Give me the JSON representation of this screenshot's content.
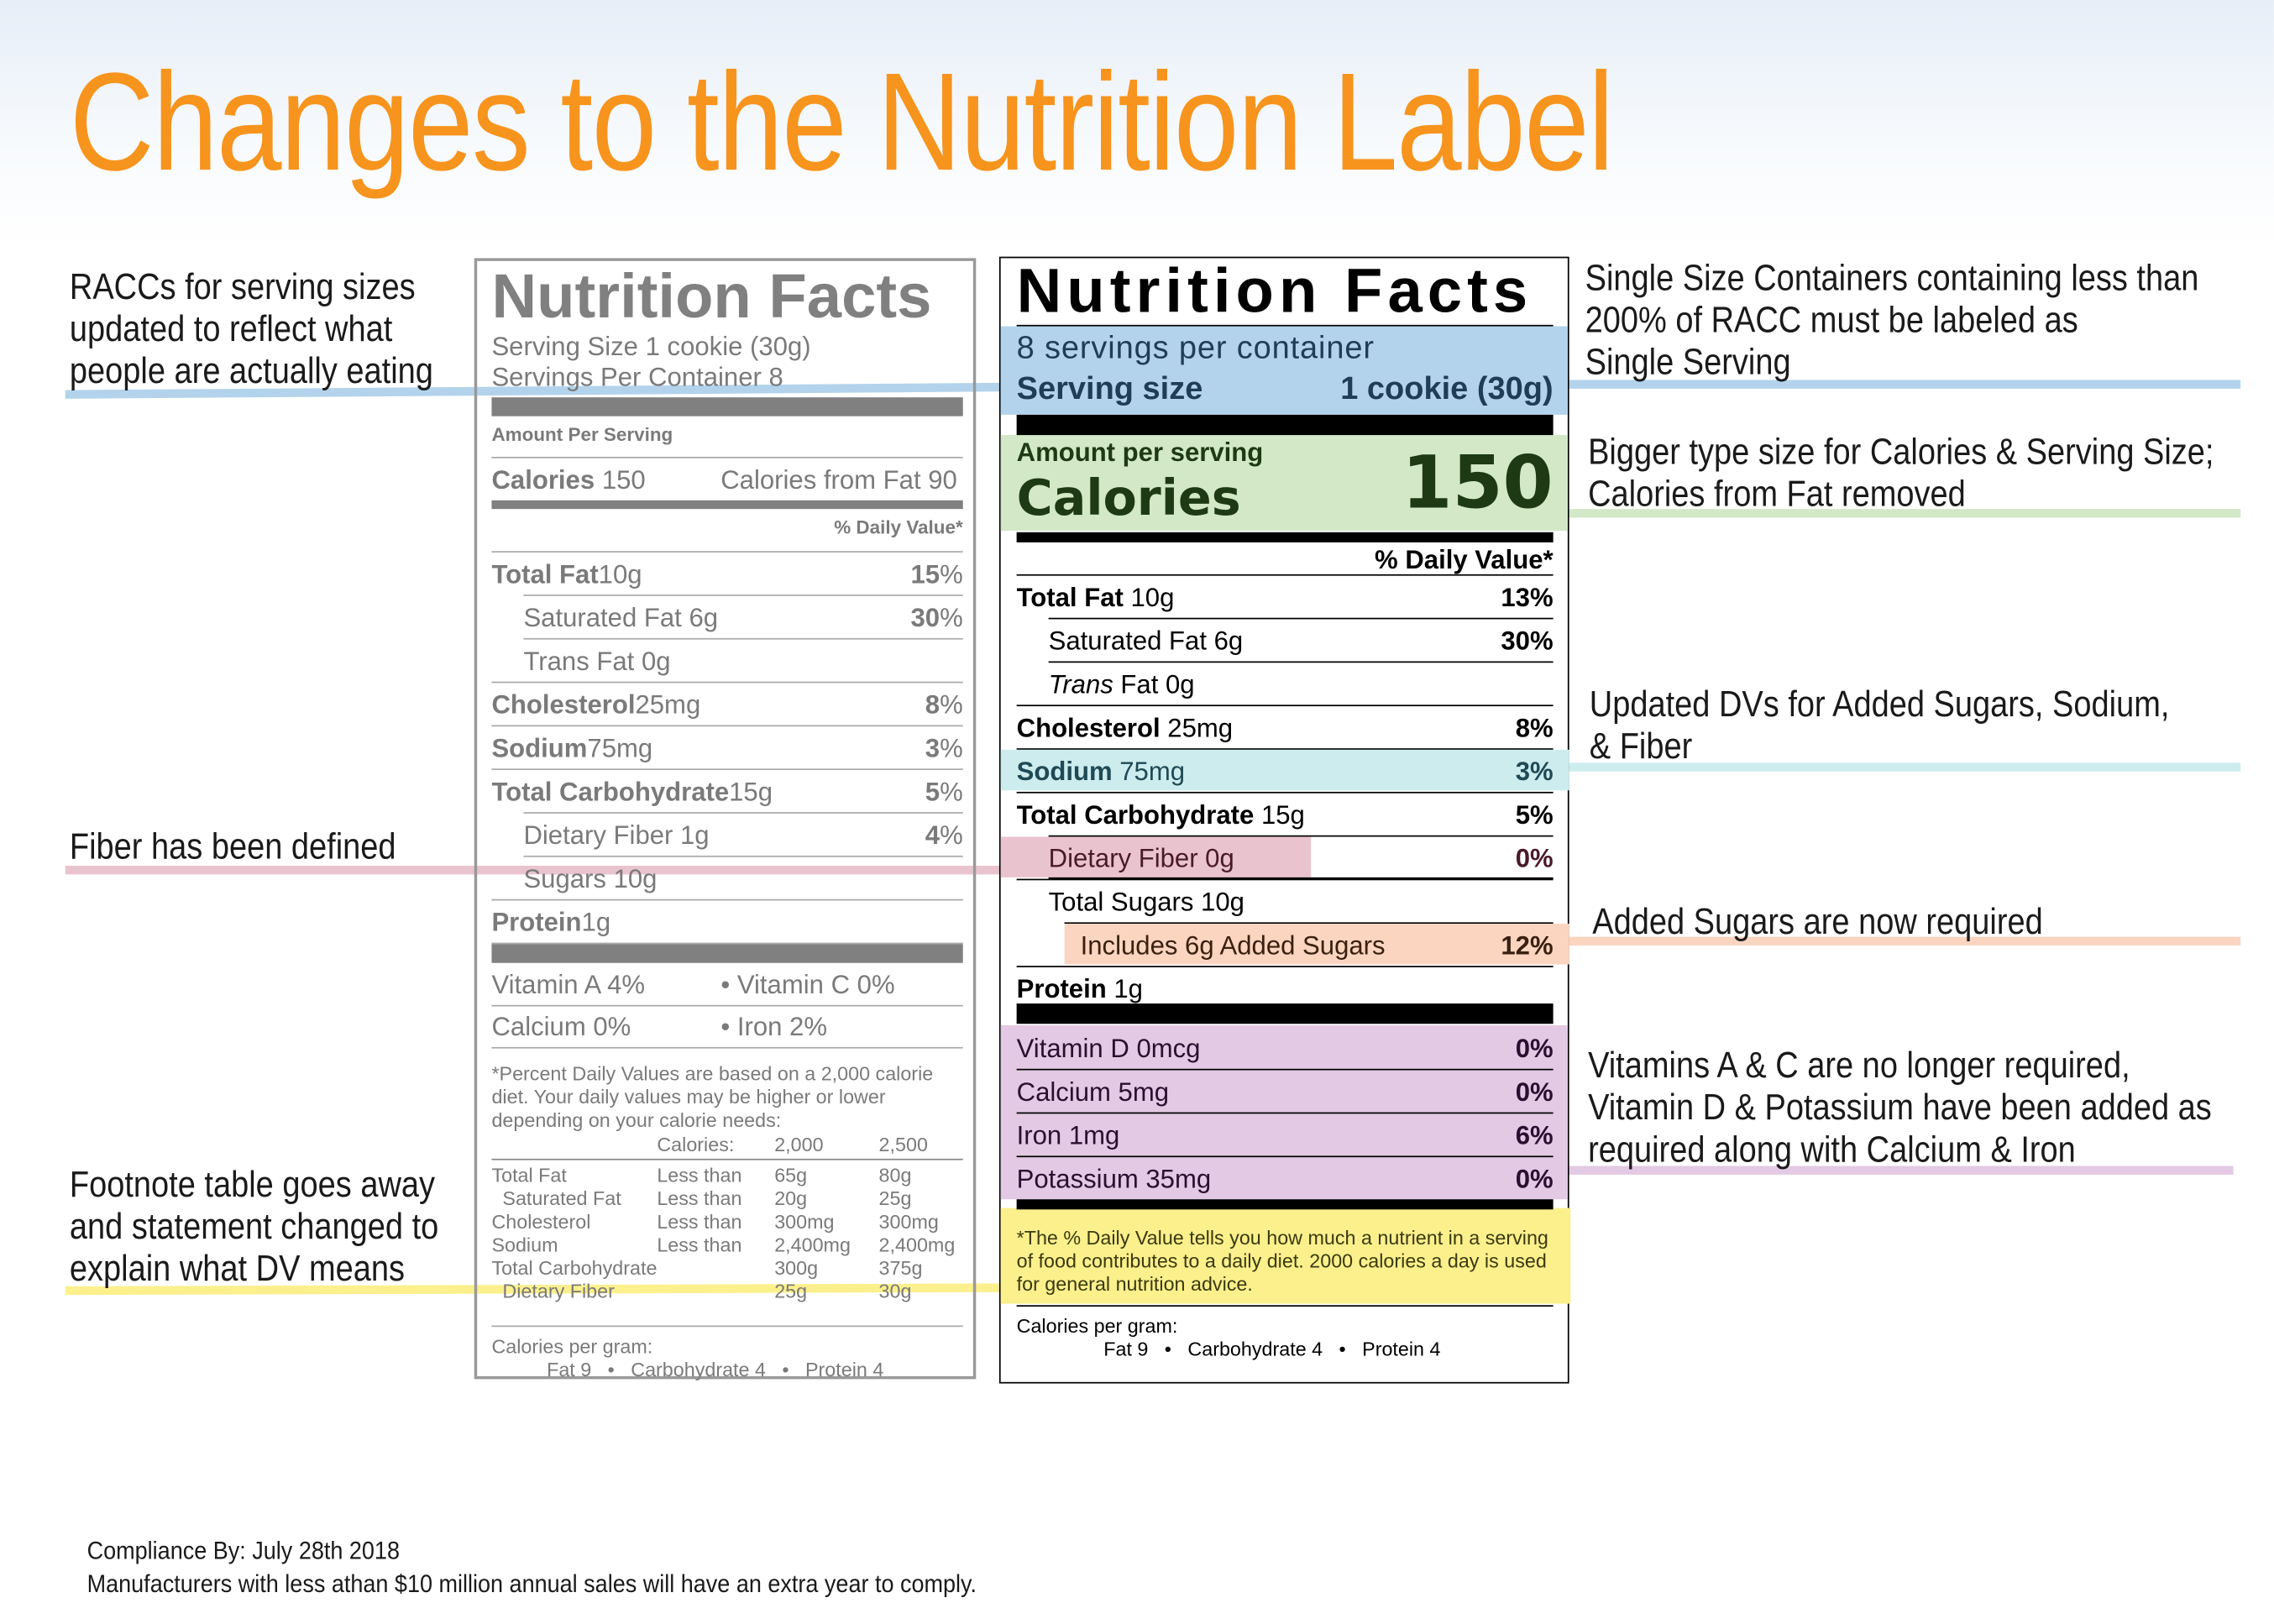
{
  "title": "Changes to the Nutrition Label",
  "colors": {
    "title": "#f7941d",
    "blue": "#b3d3ec",
    "green": "#d2e8c6",
    "teal": "#cdecee",
    "pink": "#e9c4cf",
    "orange": "#fbd5c0",
    "purple": "#e3c9e3",
    "yellow": "#fbf08c"
  },
  "annotations": {
    "left": [
      {
        "lines": [
          "RACCs for serving sizes",
          "updated to reflect what",
          "people are actually eating"
        ],
        "color": "blue"
      },
      {
        "lines": [
          "Fiber has been defined"
        ],
        "color": "pink"
      },
      {
        "lines": [
          "Footnote table goes away",
          "and statement changed to",
          "explain what DV means"
        ],
        "color": "yellow"
      }
    ],
    "right": [
      {
        "lines": [
          "Single Size Containers containing less than",
          "200% of RACC must be labeled as",
          "Single Serving"
        ],
        "color": "blue"
      },
      {
        "lines": [
          "Bigger type size for Calories & Serving Size;",
          "Calories from Fat removed"
        ],
        "color": "green"
      },
      {
        "lines": [
          "Updated DVs for Added Sugars, Sodium,",
          "& Fiber"
        ],
        "color": "teal"
      },
      {
        "lines": [
          "Added Sugars are now required"
        ],
        "color": "orange"
      },
      {
        "lines": [
          "Vitamins A & C are no longer required,",
          "Vitamin D & Potassium have been added as",
          "required along with Calcium & Iron"
        ],
        "color": "purple"
      }
    ]
  },
  "old_label": {
    "title": "Nutrition Facts",
    "serving_size": "Serving Size 1 cookie (30g)",
    "servings_per_container": "Servings Per Container 8",
    "amount_per_serving": "Amount Per Serving",
    "calories_label": "Calories",
    "calories_value": "150",
    "calories_from_fat": "Calories from Fat 90",
    "dv_header": "% Daily Value*",
    "rows": [
      {
        "name": "Total Fat",
        "amount": "10g",
        "dv_bold": "15",
        "dv_pct": "%",
        "bold": true,
        "indent": false
      },
      {
        "name": "Saturated Fat",
        "amount": " 6g",
        "dv_bold": "30",
        "dv_pct": "%",
        "bold": false,
        "indent": true
      },
      {
        "name": "Trans Fat",
        "amount": " 0g",
        "dv_bold": "",
        "dv_pct": "",
        "bold": false,
        "indent": true
      },
      {
        "name": "Cholesterol",
        "amount": "25mg",
        "dv_bold": "8",
        "dv_pct": "%",
        "bold": true,
        "indent": false
      },
      {
        "name": "Sodium",
        "amount": "75mg",
        "dv_bold": "3",
        "dv_pct": "%",
        "bold": true,
        "indent": false
      },
      {
        "name": "Total Carbohydrate",
        "amount": "15g",
        "dv_bold": "5",
        "dv_pct": "%",
        "bold": true,
        "indent": false
      },
      {
        "name": "Dietary Fiber",
        "amount": " 1g",
        "dv_bold": "4",
        "dv_pct": "%",
        "bold": false,
        "indent": true
      },
      {
        "name": "Sugars",
        "amount": " 10g",
        "dv_bold": "",
        "dv_pct": "",
        "bold": false,
        "indent": true
      },
      {
        "name": "Protein",
        "amount": "1g",
        "dv_bold": "",
        "dv_pct": "",
        "bold": true,
        "indent": false
      }
    ],
    "vitamins": [
      {
        "left": "Vitamin A 4%",
        "right": "• Vitamin C 0%"
      },
      {
        "left": "Calcium 0%",
        "right": "• Iron 2%"
      }
    ],
    "footnote": "*Percent Daily Values are based on a 2,000 calorie diet. Your daily values may be higher or lower depending on your calorie needs:",
    "table_header": [
      "",
      "Calories:",
      "2,000",
      "2,500"
    ],
    "table_rows": [
      [
        "Total Fat",
        "Less than",
        "65g",
        "80g"
      ],
      [
        "  Saturated Fat",
        "Less than",
        "20g",
        "25g"
      ],
      [
        "Cholesterol",
        "Less than",
        "300mg",
        "300mg"
      ],
      [
        "Sodium",
        "Less than",
        "2,400mg",
        "2,400mg"
      ],
      [
        "Total Carbohydrate",
        "",
        "300g",
        "375g"
      ],
      [
        "  Dietary Fiber",
        "",
        "25g",
        "30g"
      ]
    ],
    "cal_per_gram": "Calories per gram:",
    "cal_per_gram_values": "Fat 9   •   Carbohydrate 4   •   Protein 4"
  },
  "new_label": {
    "title": "Nutrition Facts",
    "servings_per_container": "8 servings per container",
    "serving_size_label": "Serving size",
    "serving_size_value": "1 cookie (30g)",
    "amount_per_serving": "Amount per serving",
    "calories_label": "Calories",
    "calories_value": "150",
    "dv_header": "% Daily Value*",
    "rows": [
      {
        "name": "Total Fat",
        "amount": " 10g",
        "dv": "13%",
        "bold": true,
        "indent": 0
      },
      {
        "name": "Saturated Fat",
        "amount": " 6g",
        "dv": "30%",
        "bold": false,
        "indent": 1
      },
      {
        "name": "Trans",
        "amount": " Fat 0g",
        "dv": "",
        "bold": false,
        "italic": true,
        "indent": 1
      },
      {
        "name": "Cholesterol",
        "amount": " 25mg",
        "dv": "8%",
        "bold": true,
        "indent": 0
      },
      {
        "name": "Sodium",
        "amount": " 75mg",
        "dv": "3%",
        "bold": true,
        "indent": 0,
        "highlight": "teal"
      },
      {
        "name": "Total Carbohydrate",
        "amount": " 15g",
        "dv": "5%",
        "bold": true,
        "indent": 0
      },
      {
        "name": "Dietary Fiber 0g",
        "amount": "",
        "dv": "0%",
        "bold": false,
        "indent": 1,
        "highlight": "pink"
      },
      {
        "name": "Total Sugars 10g",
        "amount": "",
        "dv": "",
        "bold": false,
        "indent": 1
      },
      {
        "name": "Includes 6g Added Sugars",
        "amount": "",
        "dv": "12%",
        "bold": false,
        "indent": 2,
        "highlight": "orange"
      },
      {
        "name": "Protein",
        "amount": " 1g",
        "dv": "",
        "bold": true,
        "indent": 0
      }
    ],
    "minerals": [
      {
        "name": "Vitamin D 0mcg",
        "dv": "0%"
      },
      {
        "name": "Calcium 5mg",
        "dv": "0%"
      },
      {
        "name": "Iron 1mg",
        "dv": "6%"
      },
      {
        "name": "Potassium 35mg",
        "dv": "0%"
      }
    ],
    "footnote": "*The % Daily Value tells you how much a nutrient in a serving of food contributes to a daily diet. 2000 calories a day is used for general nutrition advice.",
    "cal_per_gram": "Calories per gram:",
    "cal_per_gram_values": "Fat 9   •   Carbohydrate 4   •   Protein 4"
  },
  "compliance": {
    "line1": "Compliance By: July 28th 2018",
    "line2": "Manufacturers with less athan $10 million annual sales will have an extra year to comply."
  }
}
